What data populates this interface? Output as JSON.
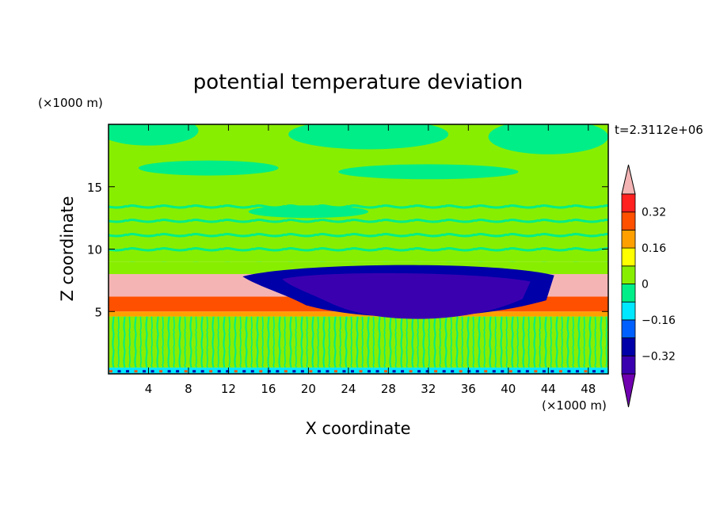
{
  "chart_data": {
    "type": "heatmap",
    "title": "potential temperature deviation",
    "xlabel": "X coordinate",
    "ylabel": "Z coordinate",
    "x_unit": "(×1000 m)",
    "y_unit": "(×1000 m)",
    "time_label": "t=2.3112e+06",
    "xlim": [
      0,
      50
    ],
    "ylim": [
      0,
      20
    ],
    "x_ticks": [
      4,
      8,
      12,
      16,
      20,
      24,
      28,
      32,
      36,
      40,
      44,
      48
    ],
    "y_ticks": [
      5,
      10,
      15
    ],
    "colorbar": {
      "levels": [
        -0.4,
        -0.32,
        -0.24,
        -0.16,
        -0.08,
        0,
        0.08,
        0.16,
        0.24,
        0.32,
        0.4
      ],
      "tick_labels": [
        "0.32",
        "0.16",
        "0",
        "−0.16",
        "−0.32"
      ],
      "tick_values": [
        0.32,
        0.16,
        0,
        -0.16,
        -0.32
      ],
      "colors": [
        "#7000b0",
        "#3a00b0",
        "#0000a8",
        "#0060ff",
        "#00e8ff",
        "#00ee88",
        "#88ee00",
        "#ffff00",
        "#ffa000",
        "#ff5000",
        "#ff2020",
        "#f4b4b4"
      ],
      "extend": "both"
    },
    "layers": [
      {
        "z_range": [
          0,
          0.5
        ],
        "value": -0.1,
        "description_level": "mixed"
      },
      {
        "z_range": [
          0.5,
          4.6
        ],
        "value": 0.04
      },
      {
        "z_range": [
          4.6,
          5.0
        ],
        "value": 0.2
      },
      {
        "z_range": [
          5.0,
          6.2
        ],
        "value": 0.3
      },
      {
        "z_range": [
          6.2,
          8.0
        ],
        "value": 0.45
      },
      {
        "z_range": [
          8.0,
          9.0
        ],
        "value": 0.02
      },
      {
        "z_range": [
          9.0,
          14.0
        ],
        "value": 0.1
      },
      {
        "z_range": [
          14.0,
          20.0
        ],
        "value": 0.06
      }
    ],
    "cold_anomaly": {
      "x_range": [
        15,
        43
      ],
      "z_range": [
        4.5,
        8.5
      ],
      "value": -0.38
    }
  }
}
